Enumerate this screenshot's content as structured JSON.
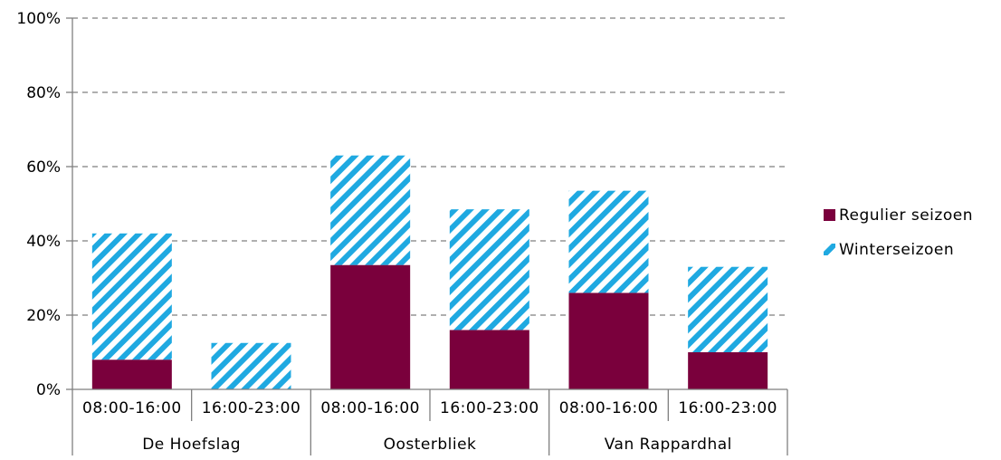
{
  "chart_data": {
    "type": "bar",
    "stacked": true,
    "groups": [
      "De Hoefslag",
      "Oosterbliek",
      "Van Rappardhal"
    ],
    "categories": [
      "08:00-16:00",
      "16:00-23:00",
      "08:00-16:00",
      "16:00-23:00",
      "08:00-16:00",
      "16:00-23:00"
    ],
    "series": [
      {
        "name": "Regulier seizoen",
        "values": [
          8,
          0,
          33.5,
          16,
          26,
          10
        ],
        "color": "#7a003c",
        "pattern": "solid"
      },
      {
        "name": "Winterseizoen",
        "values": [
          34,
          12.5,
          29.5,
          32.5,
          27.5,
          23
        ],
        "color": "#1fa9e1",
        "pattern": "diagonal-stripes"
      }
    ],
    "ylim": [
      0,
      100
    ],
    "yticks": [
      0,
      20,
      40,
      60,
      80,
      100
    ],
    "ytick_labels": [
      "0%",
      "20%",
      "40%",
      "60%",
      "80%",
      "100%"
    ],
    "grid": true,
    "legend_position": "right"
  }
}
